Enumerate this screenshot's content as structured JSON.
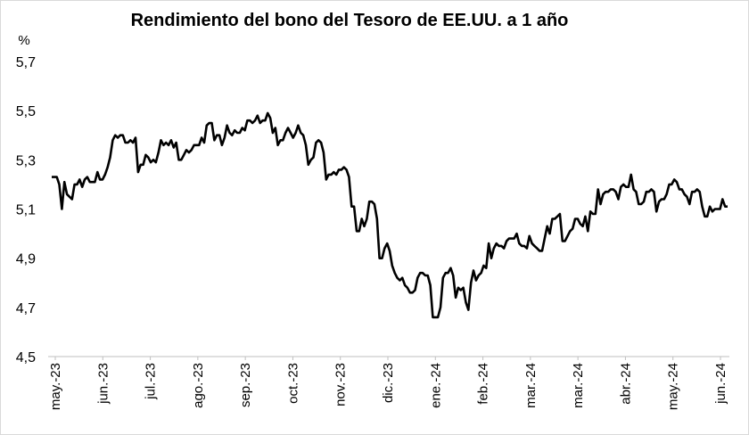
{
  "chart_data": {
    "type": "line",
    "title": "Rendimiento del bono del Tesoro de EE.UU. a 1 año",
    "ylabel": "%",
    "xlabel": "",
    "ylim": [
      4.5,
      5.7
    ],
    "yticks": [
      "4,5",
      "4,7",
      "4,9",
      "5,1",
      "5,3",
      "5,5",
      "5,7"
    ],
    "xtick_labels": [
      "may.-23",
      "jun.-23",
      "jul.-23",
      "ago.-23",
      "sep.-23",
      "oct.-23",
      "nov.-23",
      "dic.-23",
      "ene.-24",
      "feb.-24",
      "mar.-24",
      "mar.-24",
      "abr.-24",
      "may.-24",
      "jun.-24"
    ],
    "grid": false,
    "legend": "none",
    "line_color": "#000000",
    "series": [
      {
        "values": [
          5.23,
          5.23,
          5.23,
          5.2,
          5.1,
          5.21,
          5.16,
          5.15,
          5.14,
          5.2,
          5.2,
          5.22,
          5.19,
          5.22,
          5.23,
          5.21,
          5.21,
          5.21,
          5.25,
          5.22,
          5.22,
          5.24,
          5.27,
          5.31,
          5.38,
          5.4,
          5.39,
          5.4,
          5.4,
          5.37,
          5.37,
          5.38,
          5.37,
          5.39,
          5.25,
          5.28,
          5.28,
          5.32,
          5.31,
          5.29,
          5.3,
          5.29,
          5.33,
          5.38,
          5.36,
          5.37,
          5.36,
          5.38,
          5.35,
          5.37,
          5.3,
          5.3,
          5.32,
          5.34,
          5.33,
          5.34,
          5.36,
          5.36,
          5.36,
          5.39,
          5.37,
          5.44,
          5.45,
          5.45,
          5.38,
          5.4,
          5.4,
          5.36,
          5.39,
          5.44,
          5.41,
          5.4,
          5.42,
          5.41,
          5.41,
          5.43,
          5.42,
          5.46,
          5.46,
          5.45,
          5.46,
          5.48,
          5.45,
          5.46,
          5.46,
          5.49,
          5.47,
          5.41,
          5.43,
          5.36,
          5.38,
          5.38,
          5.41,
          5.43,
          5.41,
          5.39,
          5.41,
          5.44,
          5.41,
          5.4,
          5.36,
          5.28,
          5.3,
          5.31,
          5.37,
          5.38,
          5.37,
          5.33,
          5.22,
          5.24,
          5.24,
          5.25,
          5.24,
          5.26,
          5.26,
          5.27,
          5.26,
          5.23,
          5.11,
          5.11,
          5.01,
          5.01,
          5.06,
          5.03,
          5.06,
          5.13,
          5.13,
          5.12,
          5.06,
          4.9,
          4.9,
          4.94,
          4.96,
          4.93,
          4.87,
          4.84,
          4.82,
          4.81,
          4.82,
          4.79,
          4.78,
          4.76,
          4.76,
          4.77,
          4.82,
          4.84,
          4.84,
          4.83,
          4.83,
          4.79,
          4.66,
          4.66,
          4.66,
          4.7,
          4.82,
          4.84,
          4.84,
          4.86,
          4.83,
          4.74,
          4.78,
          4.77,
          4.78,
          4.72,
          4.69,
          4.8,
          4.85,
          4.81,
          4.83,
          4.84,
          4.87,
          4.86,
          4.96,
          4.9,
          4.94,
          4.96,
          4.95,
          4.95,
          4.94,
          4.97,
          4.98,
          4.98,
          4.98,
          5.0,
          4.96,
          4.95,
          4.95,
          4.94,
          4.99,
          4.96,
          4.95,
          4.94,
          4.93,
          4.93,
          4.98,
          5.03,
          5.0,
          5.06,
          5.06,
          5.07,
          5.08,
          4.97,
          4.97,
          4.99,
          5.01,
          5.02,
          5.06,
          5.06,
          5.04,
          5.03,
          5.07,
          5.01,
          5.09,
          5.08,
          5.08,
          5.18,
          5.12,
          5.16,
          5.17,
          5.17,
          5.18,
          5.18,
          5.17,
          5.14,
          5.19,
          5.2,
          5.19,
          5.19,
          5.24,
          5.18,
          5.17,
          5.12,
          5.12,
          5.13,
          5.17,
          5.17,
          5.18,
          5.17,
          5.09,
          5.13,
          5.14,
          5.14,
          5.16,
          5.2,
          5.2,
          5.22,
          5.21,
          5.18,
          5.18,
          5.16,
          5.15,
          5.12,
          5.17,
          5.17,
          5.18,
          5.17,
          5.11,
          5.07,
          5.07,
          5.11,
          5.09,
          5.1,
          5.1,
          5.1,
          5.14,
          5.11,
          5.11
        ]
      }
    ]
  }
}
